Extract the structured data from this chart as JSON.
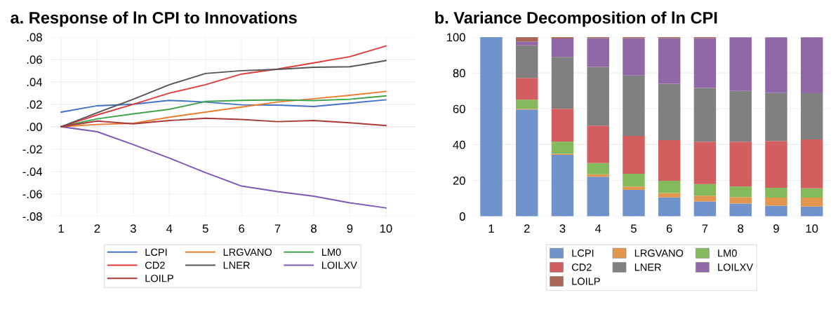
{
  "chart_data": [
    {
      "type": "line",
      "title": "a. Response of ln CPI to Innovations",
      "categories": [
        "1",
        "2",
        "3",
        "4",
        "5",
        "6",
        "7",
        "8",
        "9",
        "10"
      ],
      "ylim": [
        -0.08,
        0.08
      ],
      "yticks": [
        {
          "value": -0.08,
          "label": "-.08"
        },
        {
          "value": -0.06,
          "label": "-.06"
        },
        {
          "value": -0.04,
          "label": "-.04"
        },
        {
          "value": -0.02,
          "label": "-.02"
        },
        {
          "value": 0,
          "label": ".00"
        },
        {
          "value": 0.02,
          "label": ".02"
        },
        {
          "value": 0.04,
          "label": ".04"
        },
        {
          "value": 0.06,
          "label": ".06"
        },
        {
          "value": 0.08,
          "label": ".08"
        }
      ],
      "grid": true,
      "legend": "bottom",
      "line_style": "solid",
      "marker": "none",
      "series": [
        {
          "name": "LCPI",
          "color": "#4472c4",
          "values": [
            0.013,
            0.0187,
            0.02,
            0.0235,
            0.022,
            0.0195,
            0.0193,
            0.018,
            0.021,
            0.024
          ]
        },
        {
          "name": "LRGVANO",
          "color": "#ed7d31",
          "values": [
            0,
            0.002,
            0.003,
            0.0085,
            0.013,
            0.0175,
            0.022,
            0.025,
            0.028,
            0.0315
          ]
        },
        {
          "name": "LM0",
          "color": "#3fa34d",
          "values": [
            0,
            0.007,
            0.0115,
            0.0155,
            0.0225,
            0.0235,
            0.024,
            0.0233,
            0.0245,
            0.0275
          ]
        },
        {
          "name": "CD2",
          "color": "#e03c3c",
          "values": [
            0,
            0.0105,
            0.02,
            0.03,
            0.0375,
            0.047,
            0.0515,
            0.057,
            0.0625,
            0.072
          ]
        },
        {
          "name": "LNER",
          "color": "#555555",
          "values": [
            0,
            0.0125,
            0.0245,
            0.0375,
            0.0475,
            0.05,
            0.0512,
            0.053,
            0.0535,
            0.059
          ]
        },
        {
          "name": "LOILXV",
          "color": "#7e57b8",
          "values": [
            0,
            -0.0045,
            -0.016,
            -0.028,
            -0.041,
            -0.053,
            -0.058,
            -0.062,
            -0.068,
            -0.0725
          ]
        },
        {
          "name": "LOILP",
          "color": "#a83a3a",
          "values": [
            0,
            0.005,
            0.0025,
            0.0055,
            0.0075,
            0.0065,
            0.0045,
            0.0055,
            0.0035,
            0.001
          ]
        }
      ]
    },
    {
      "type": "bar",
      "stacked": true,
      "title": "b. Variance Decomposition of ln CPI",
      "categories": [
        "1",
        "2",
        "3",
        "4",
        "5",
        "6",
        "7",
        "8",
        "9",
        "10"
      ],
      "ylim": [
        0,
        100
      ],
      "yticks": [
        0,
        20,
        40,
        60,
        80,
        100
      ],
      "grid": true,
      "legend": "bottom",
      "series": [
        {
          "name": "LCPI",
          "color": "#7193cb",
          "values": [
            100,
            59.6,
            34.3,
            22.1,
            14.7,
            10.5,
            8.3,
            7.1,
            5.9,
            5.5
          ]
        },
        {
          "name": "LRGVANO",
          "color": "#e2964e",
          "values": [
            null,
            0.4,
            0.6,
            1.3,
            1.9,
            2.5,
            3.2,
            3.6,
            4.5,
            4.9
          ]
        },
        {
          "name": "LM0",
          "color": "#84ba5b",
          "values": [
            null,
            5.1,
            6.7,
            6.3,
            7.1,
            6.8,
            6.5,
            5.9,
            5.5,
            5.2
          ]
        },
        {
          "name": "CD2",
          "color": "#d35e60",
          "values": [
            null,
            12.1,
            18.4,
            20.9,
            21.1,
            22.7,
            23.6,
            25.0,
            26.1,
            27.3
          ]
        },
        {
          "name": "LNER",
          "color": "#808080",
          "values": [
            null,
            18.2,
            28.9,
            32.8,
            33.8,
            31.5,
            30.0,
            28.4,
            26.9,
            25.8
          ]
        },
        {
          "name": "LOILXV",
          "color": "#9067a7",
          "values": [
            null,
            2.1,
            10.3,
            16.0,
            20.8,
            25.4,
            27.8,
            29.9,
            31.0,
            31.2
          ]
        },
        {
          "name": "LOILP",
          "color": "#ab6857",
          "values": [
            null,
            2.5,
            0.8,
            0.6,
            0.6,
            0.6,
            0.6,
            null,
            null,
            null
          ]
        }
      ]
    }
  ]
}
